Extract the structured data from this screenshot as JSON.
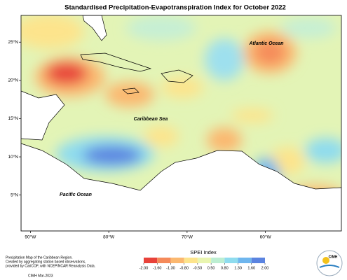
{
  "title": "Standardised Precipitation-Evapotranspiration Index for October 2022",
  "map": {
    "xlim": [
      -91.2,
      -50.3
    ],
    "ylim": [
      0.3,
      28.5
    ],
    "xticks": [
      {
        "value": -90,
        "label": "90°W"
      },
      {
        "value": -80,
        "label": "80°W"
      },
      {
        "value": -70,
        "label": "70°W"
      },
      {
        "value": -60,
        "label": "60°W"
      }
    ],
    "yticks": [
      {
        "value": 5,
        "label": "5°N"
      },
      {
        "value": 10,
        "label": "10°N"
      },
      {
        "value": 15,
        "label": "15°N"
      },
      {
        "value": 20,
        "label": "20°N"
      },
      {
        "value": 25,
        "label": "25°N"
      }
    ],
    "labels": [
      "Atlantic Ocean",
      "Caribbean Sea",
      "Pacific Ocean"
    ]
  },
  "legend": {
    "title": "SPEI Index",
    "ticks": [
      {
        "value": -2,
        "label": "-2.00"
      },
      {
        "value": -1.6,
        "label": "-1.60"
      },
      {
        "value": -1.3,
        "label": "-1.30"
      },
      {
        "value": -0.8,
        "label": "-0.80"
      },
      {
        "value": -0.5,
        "label": "-0.50"
      },
      {
        "value": 0.5,
        "label": "0.50"
      },
      {
        "value": 0.8,
        "label": "0.80"
      },
      {
        "value": 1.3,
        "label": "1.30"
      },
      {
        "value": 1.6,
        "label": "1.60"
      },
      {
        "value": 2,
        "label": "2.00"
      }
    ],
    "colors": [
      "#e8423a",
      "#f58a5a",
      "#fbb870",
      "#fde48c",
      "#e9f5b0",
      "#bdeed2",
      "#8fdcee",
      "#6fb6ee",
      "#5b84e0"
    ]
  },
  "footer": {
    "lines": [
      "Precipitation Map of the Caribbean Region.",
      "Created by aggregating station based observations,",
      "provided by CariCOF, with NCEP/NCAR Reanalysis Data."
    ],
    "date": "CIMH Mar-2023"
  },
  "logo": "CIMH"
}
